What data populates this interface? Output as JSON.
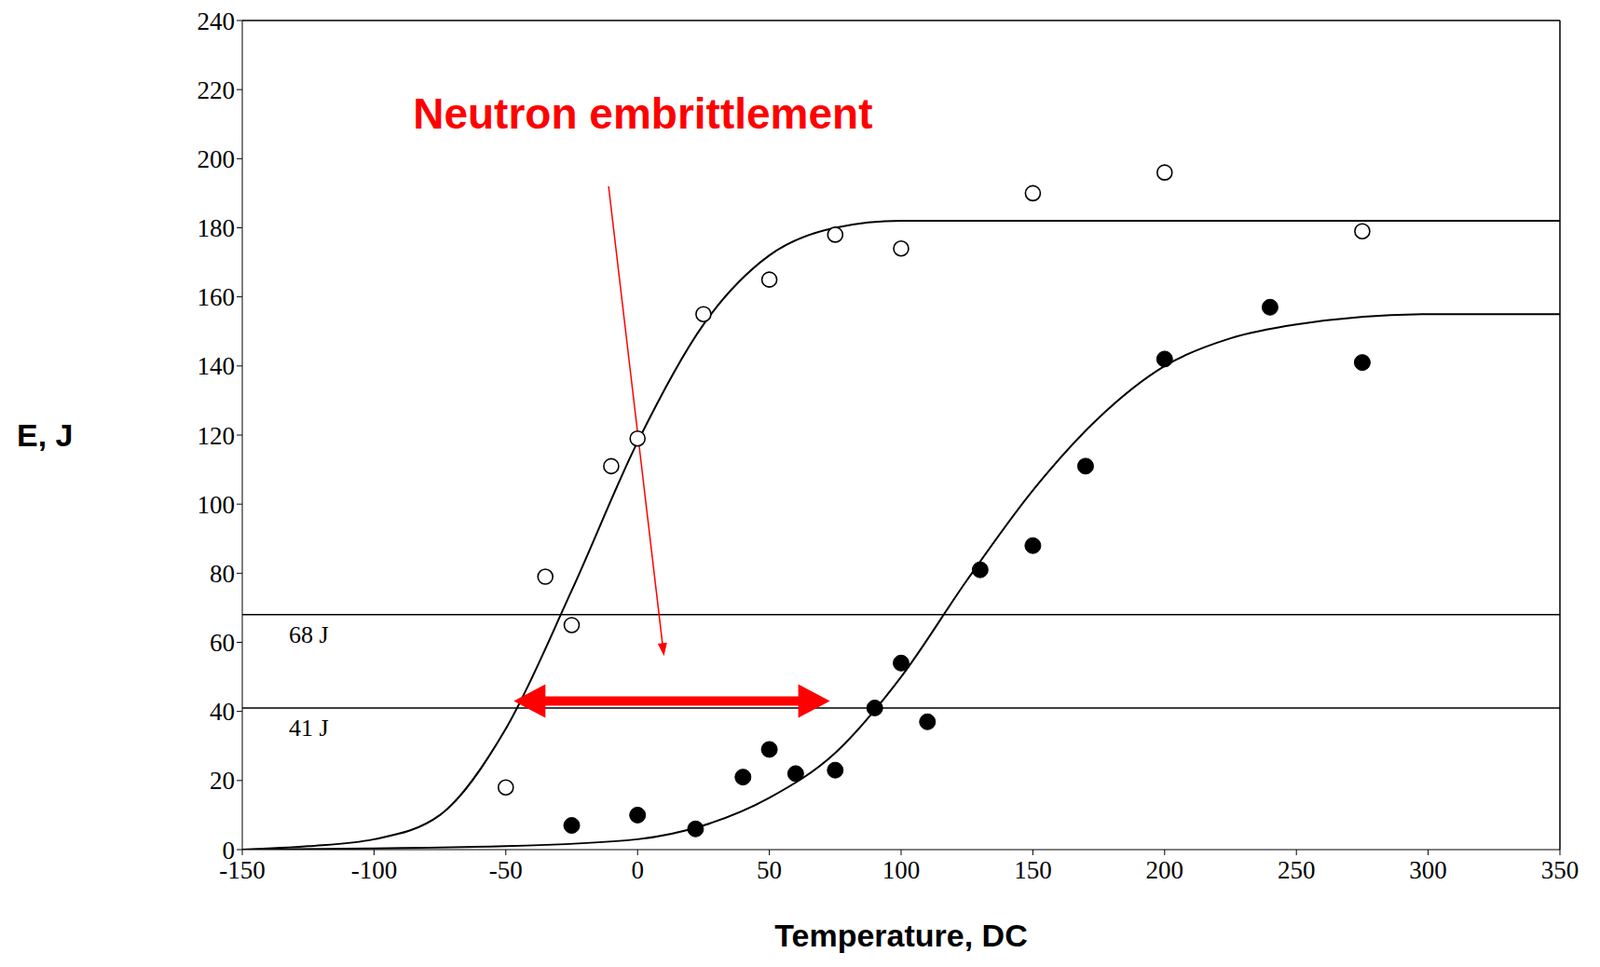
{
  "chart_data": {
    "type": "scatter",
    "x_label": "Temperature, DC",
    "y_label": "E, J",
    "xlim": [
      -150,
      350
    ],
    "xticks": [
      -150,
      -100,
      -50,
      0,
      50,
      100,
      150,
      200,
      250,
      300,
      350
    ],
    "ylim": [
      0,
      240
    ],
    "yticks": [
      0,
      20,
      40,
      60,
      80,
      100,
      120,
      140,
      160,
      180,
      200,
      220,
      240
    ],
    "grid": false,
    "series": [
      {
        "type": "scatter",
        "marker": "open circle",
        "color": "#000000",
        "x": [
          -50,
          -35,
          -25,
          -10,
          0,
          25,
          50,
          75,
          100,
          150,
          200,
          275
        ],
        "values": [
          18,
          79,
          65,
          111,
          119,
          155,
          165,
          178,
          174,
          190,
          196,
          179
        ]
      },
      {
        "type": "scatter",
        "marker": "filled circle",
        "color": "#000000",
        "x": [
          -25,
          0,
          22,
          40,
          50,
          60,
          75,
          90,
          100,
          110,
          130,
          150,
          170,
          200,
          240,
          275
        ],
        "values": [
          7,
          10,
          6,
          21,
          29,
          22,
          23,
          41,
          54,
          37,
          81,
          88,
          111,
          142,
          157,
          141
        ]
      },
      {
        "type": "line",
        "line_style": "solid",
        "color": "#000000",
        "x": [
          -150,
          -125,
          -100,
          -75,
          -50,
          -25,
          0,
          25,
          50,
          75,
          100,
          150,
          200,
          250,
          300,
          350
        ],
        "values": [
          0,
          1,
          3,
          10,
          35,
          75,
          118,
          152,
          172,
          180,
          182,
          182,
          182,
          182,
          182,
          182
        ]
      },
      {
        "type": "line",
        "line_style": "solid",
        "color": "#000000",
        "x": [
          -150,
          -50,
          0,
          25,
          50,
          75,
          100,
          125,
          150,
          175,
          200,
          225,
          250,
          300,
          350
        ],
        "values": [
          0,
          1,
          3,
          7,
          15,
          28,
          50,
          78,
          104,
          125,
          140,
          148,
          152,
          155,
          155
        ]
      }
    ],
    "reference_lines": [
      {
        "y": 68,
        "label": "68 J",
        "color": "#000000"
      },
      {
        "y": 41,
        "label": "41 J",
        "color": "#000000"
      }
    ],
    "annotations": [
      {
        "text": "Neutron embrittlement",
        "color": "#ff0000",
        "xy": [
          2,
          212
        ],
        "arrow_from": [
          -11,
          192
        ],
        "arrow_to": [
          10,
          56
        ]
      }
    ],
    "shift": {
      "x": [
        -47,
        73
      ],
      "y": 43,
      "color": "#ff0000"
    }
  }
}
